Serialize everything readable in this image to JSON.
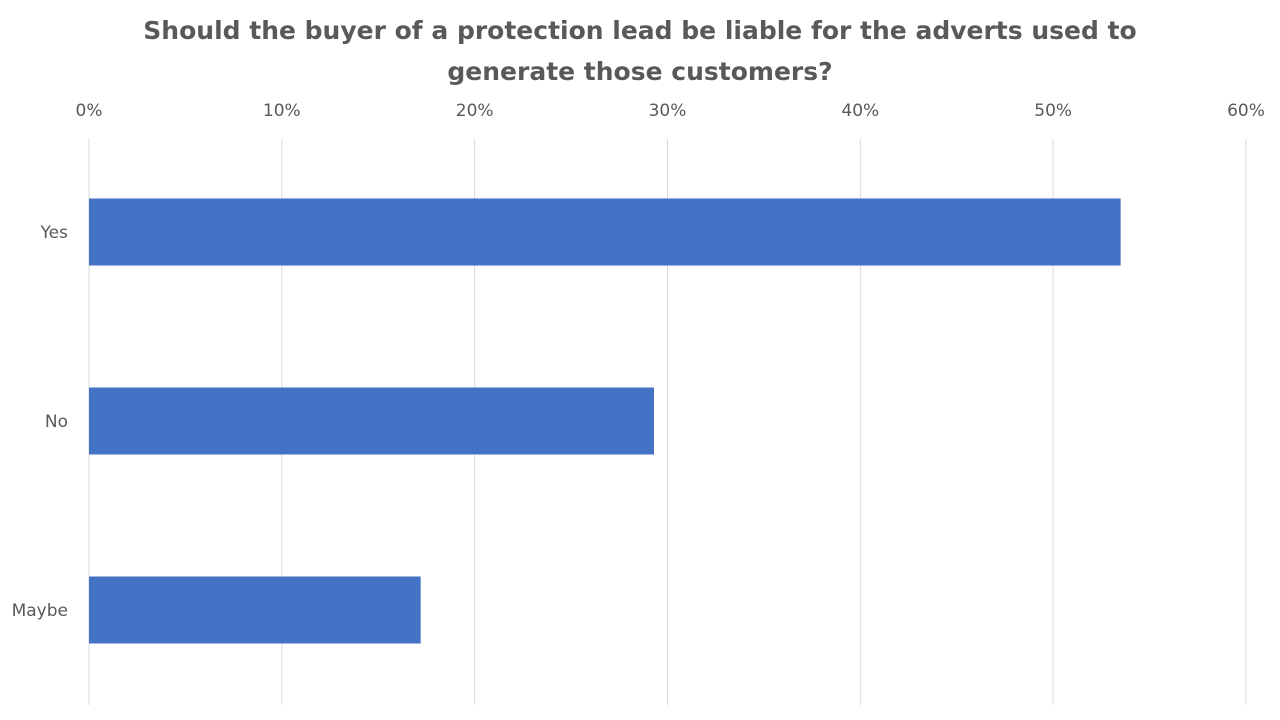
{
  "chart_data": {
    "type": "bar",
    "orientation": "horizontal",
    "title": "Should the buyer of a protection lead be liable for the adverts used to generate those customers?",
    "xlabel": "",
    "ylabel": "",
    "categories": [
      "Yes",
      "No",
      "Maybe"
    ],
    "values": [
      53.5,
      29.3,
      17.2
    ],
    "value_unit": "%",
    "xlim": [
      0,
      60
    ],
    "x_ticks": [
      "0%",
      "10%",
      "20%",
      "30%",
      "40%",
      "50%",
      "60%"
    ],
    "x_tick_values": [
      0,
      10,
      20,
      30,
      40,
      50,
      60
    ],
    "x_axis_position": "top",
    "grid": true,
    "legend": "none",
    "bar_color": "#4472C4",
    "grid_color": "#D9D9D9",
    "text_color": "#595959"
  }
}
